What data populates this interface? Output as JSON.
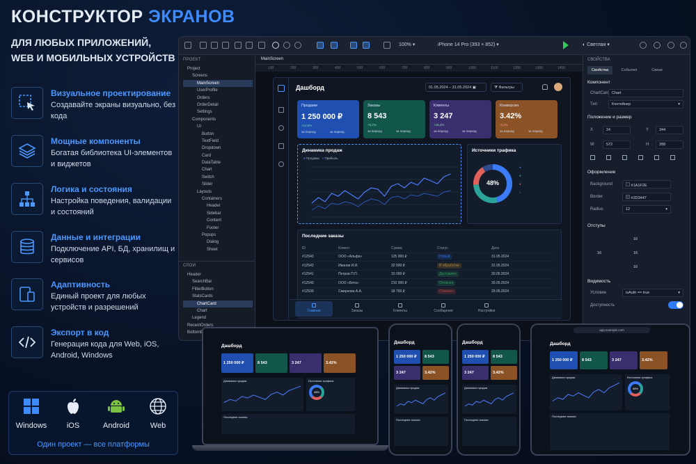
{
  "hero": {
    "title_main": "КОНСТРУКТОР ",
    "title_accent": "ЭКРАНОВ",
    "subtitle_line1": "ДЛЯ ЛЮБЫХ ПРИЛОЖЕНИЙ,",
    "subtitle_line2": "WEB И МОБИЛЬНЫХ УСТРОЙСТВ"
  },
  "features": [
    {
      "title": "Визуальное проектирование",
      "desc": "Создавайте экраны визуально, без кода",
      "icon": "cursor-select-icon"
    },
    {
      "title": "Мощные компоненты",
      "desc": "Богатая библиотека UI-элементов и виджетов",
      "icon": "layers-icon"
    },
    {
      "title": "Логика и состояния",
      "desc": "Настройка поведения, валидации и состояний",
      "icon": "hierarchy-icon"
    },
    {
      "title": "Данные и интеграции",
      "desc": "Подключение API, БД, хранилищ и сервисов",
      "icon": "database-icon"
    },
    {
      "title": "Адаптивность",
      "desc": "Единый проект для любых устройств и разрешений",
      "icon": "devices-icon"
    },
    {
      "title": "Экспорт в код",
      "desc": "Генерация кода для Web, iOS, Android, Windows",
      "icon": "code-icon"
    }
  ],
  "platforms": {
    "items": [
      {
        "label": "Windows",
        "icon": "windows-icon"
      },
      {
        "label": "iOS",
        "icon": "apple-icon"
      },
      {
        "label": "Android",
        "icon": "android-icon"
      },
      {
        "label": "Web",
        "icon": "globe-icon"
      }
    ],
    "caption": "Один проект — все платформы"
  },
  "ide": {
    "toolbar": {
      "zoom": "100%",
      "device": "iPhone 14 Pro (393 × 852)",
      "theme": "Светлая"
    },
    "project_panel": {
      "header": "ПРОЕКТ",
      "tree": [
        "Project",
        "Screens",
        "MainScreen",
        "UserProfile",
        "Orders",
        "OrderDetail",
        "Settings",
        "Components",
        "UI",
        "Button",
        "TextField",
        "Dropdown",
        "Card",
        "DataTable",
        "Chart",
        "Switch",
        "Slider",
        "Layouts",
        "Containers",
        "Header",
        "Sidebar",
        "Content",
        "Footer",
        "Popups",
        "Dialog",
        "Sheet"
      ]
    },
    "layers_panel": {
      "header": "СЛОИ",
      "tree": [
        "Header",
        "SearchBar",
        "FilterButton",
        "StatsCards",
        "ChartCard",
        "Chart",
        "Legend",
        "RecentOrders",
        "BottomBar"
      ]
    },
    "canvas_tab": "MainScreen",
    "ruler_ticks": [
      "100",
      "200",
      "300",
      "400",
      "500",
      "600",
      "700",
      "800",
      "900",
      "1000",
      "1100",
      "1200",
      "1300",
      "1400"
    ],
    "dashboard": {
      "title": "Дашборд",
      "date_range": "01.05.2024 – 31.05.2024",
      "filter": "Фильтры",
      "cards": [
        {
          "label": "Продажи",
          "value": "1 250 000 ₽",
          "delta": "+12,5%",
          "sub1": "за период",
          "sub2": "за период",
          "color": "#1f4fb0"
        },
        {
          "label": "Заказы",
          "value": "8 543",
          "delta": "+8,2%",
          "sub1": "за период",
          "sub2": "за период",
          "color": "#12564a"
        },
        {
          "label": "Клиенты",
          "value": "3 247",
          "delta": "+15,3%",
          "sub1": "за период",
          "sub2": "за период",
          "color": "#3a2f6e"
        },
        {
          "label": "Конверсия",
          "value": "3.42%",
          "delta": "-0,4%",
          "sub1": "за период",
          "sub2": "за период",
          "color": "#8a5225"
        }
      ],
      "sales_chart": {
        "title": "Динамика продаж",
        "legend": [
          "Продажи",
          "Прибыль"
        ]
      },
      "traffic": {
        "title": "Источники трафика",
        "center": "48%"
      },
      "orders": {
        "title": "Последние заказы",
        "headers": [
          "ID",
          "Клиент",
          "Сумма",
          "Статус",
          "Дата"
        ],
        "rows": [
          {
            "id": "#12543",
            "client": "ООО «Альфа»",
            "sum": "125 000 ₽",
            "status": "Новый",
            "date": "31.05.2024",
            "scolor": "#2a6bd6"
          },
          {
            "id": "#12542",
            "client": "Иванов И.И.",
            "sum": "32 500 ₽",
            "status": "В обработке",
            "date": "31.05.2024",
            "scolor": "#b8862a"
          },
          {
            "id": "#12541",
            "client": "Петров П.П.",
            "sum": "15 000 ₽",
            "status": "Доставлен",
            "date": "30.05.2024",
            "scolor": "#2a9a5a"
          },
          {
            "id": "#12540",
            "client": "ООО «Бета»",
            "sum": "210 000 ₽",
            "status": "Оплачен",
            "date": "30.05.2024",
            "scolor": "#2a9a5a"
          },
          {
            "id": "#12539",
            "client": "Смирнова А.А.",
            "sum": "18 700 ₽",
            "status": "Отменен",
            "date": "29.05.2024",
            "scolor": "#c24040"
          }
        ]
      },
      "bottom_nav": [
        "Главная",
        "Заказы",
        "Клиенты",
        "Сообщения",
        "Настройки"
      ]
    },
    "properties": {
      "header": "СВОЙСТВА",
      "tabs": [
        "Свойства",
        "События",
        "Связи"
      ],
      "component_section": "Компонент",
      "component_label": "ChartCard",
      "component_value": "Chart",
      "type_label": "Тип",
      "type_value": "Контейнер",
      "position_section": "Положение и размер",
      "x_label": "X",
      "x_value": "24",
      "y_label": "Y",
      "y_value": "344",
      "w_label": "W",
      "w_value": "572",
      "h_label": "H",
      "h_value": "288",
      "style_section": "Оформление",
      "bg_label": "Background",
      "bg_value": "#1A1F2E",
      "border_label": "Border",
      "border_value": "#2D3447",
      "radius_label": "Radius",
      "radius_value": "12",
      "padding_section": "Отступы",
      "pad_top": "16",
      "pad_left": "16",
      "pad_center": "16",
      "pad_bottom": "16",
      "visibility_section": "Видимость",
      "cond_label": "Условие",
      "cond_value": "isAuth == true",
      "avail_label": "Доступность"
    }
  },
  "devices": {
    "laptop_title": "Дашборд",
    "tablet_url": "app.example.com",
    "cards": [
      "1 250 000 ₽",
      "8 543",
      "3 247",
      "3.42%"
    ],
    "donut": "48%",
    "chart_title": "Динамика продаж",
    "traffic_title": "Источники трафика",
    "orders_title": "Последние заказы"
  }
}
